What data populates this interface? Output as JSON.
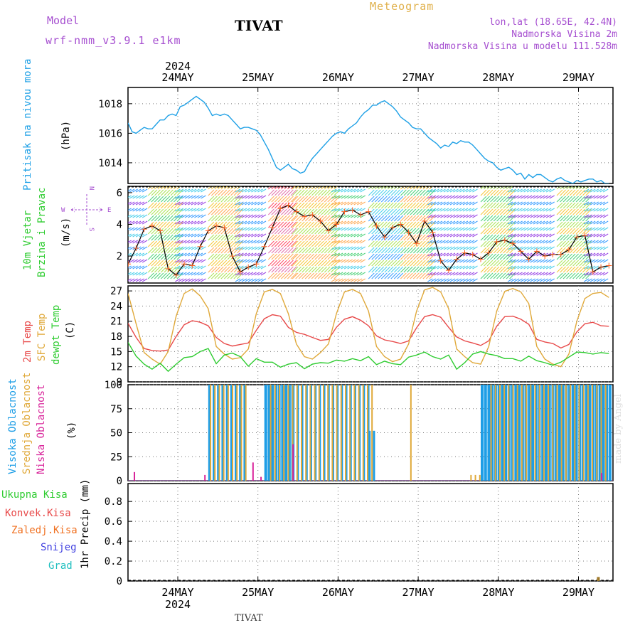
{
  "header": {
    "model_label": "Model",
    "model_run": "wrf-nmm_v3.9.1 e1km",
    "station": "TIVAT",
    "title": "Meteogram",
    "lonlat": "lon,lat (18.65E, 42.4N)",
    "elevation": "Nadmorska Visina 2m",
    "model_elevation": "Nadmorska Visina u modelu 111.528m"
  },
  "footer": {
    "station": "TIVAT",
    "watermark": "made by Angel"
  },
  "colors": {
    "pressure": "#1ea0e6",
    "temp2m": "#e84a4a",
    "sfc": "#e0a93a",
    "dew": "#2ecc30",
    "high": "#1e9ee6",
    "mid": "#e0a93a",
    "low": "#d8249a",
    "precip": "#a07a2a",
    "purple": "#a64fd0"
  },
  "chart_data": [
    {
      "type": "line",
      "panel": "pressure",
      "ylabel": "Pritisak na nivou mora",
      "unit": "(hPa)",
      "yticks": [
        1014,
        1016,
        1018
      ],
      "ylim": [
        1012.6,
        1019.1
      ],
      "x": [
        0,
        0.05,
        0.1,
        0.15,
        0.2,
        0.25,
        0.3,
        0.35,
        0.4,
        0.45,
        0.5,
        0.55,
        0.6,
        0.65,
        0.7,
        0.75,
        0.8,
        0.85,
        0.9,
        0.95,
        1.0,
        1.05,
        1.1,
        1.15,
        1.2,
        1.25,
        1.3,
        1.35,
        1.4,
        1.45,
        1.5,
        1.55,
        1.6,
        1.65,
        1.7,
        1.75,
        1.8,
        1.85,
        1.9,
        1.95,
        2.0,
        2.05,
        2.1,
        2.15,
        2.2,
        2.25,
        2.3,
        2.35,
        2.4,
        2.45,
        2.5,
        2.55,
        2.6,
        2.65,
        2.7,
        2.75,
        2.8,
        2.85,
        2.9,
        2.95,
        3.0,
        3.05,
        3.1,
        3.15,
        3.2,
        3.25,
        3.3,
        3.35,
        3.4,
        3.45,
        3.5,
        3.55,
        3.6,
        3.65,
        3.7,
        3.75,
        3.8,
        3.85,
        3.9,
        3.95,
        4.0,
        4.05,
        4.1,
        4.15,
        4.2,
        4.25,
        4.3,
        4.35,
        4.4,
        4.45,
        4.5,
        4.55,
        4.6,
        4.65,
        4.7,
        4.75,
        4.8,
        4.85,
        4.9,
        4.95,
        5.0,
        5.05,
        5.1,
        5.15,
        5.2,
        5.25,
        5.3,
        5.35,
        5.4,
        5.45,
        5.5,
        5.55,
        5.6,
        5.65,
        5.7,
        5.75,
        5.8,
        5.85,
        5.9,
        5.95,
        6.0
      ],
      "y": [
        1016.7,
        1016.1,
        1016.0,
        1016.2,
        1016.4,
        1016.3,
        1016.3,
        1016.6,
        1016.9,
        1016.9,
        1017.2,
        1017.3,
        1017.2,
        1017.8,
        1017.9,
        1018.1,
        1018.3,
        1018.5,
        1018.3,
        1018.1,
        1017.7,
        1017.2,
        1017.3,
        1017.2,
        1017.3,
        1017.2,
        1016.9,
        1016.6,
        1016.3,
        1016.4,
        1016.4,
        1016.3,
        1016.2,
        1015.9,
        1015.4,
        1014.9,
        1014.3,
        1013.7,
        1013.5,
        1013.7,
        1013.9,
        1013.6,
        1013.5,
        1013.3,
        1013.4,
        1013.9,
        1014.3,
        1014.6,
        1014.9,
        1015.2,
        1015.5,
        1015.8,
        1016.0,
        1016.1,
        1016.0,
        1016.3,
        1016.5,
        1016.7,
        1017.1,
        1017.4,
        1017.6,
        1017.9,
        1017.9,
        1018.1,
        1018.2,
        1018.0,
        1017.8,
        1017.5,
        1017.1,
        1016.9,
        1016.7,
        1016.4,
        1016.3,
        1016.3,
        1016.0,
        1015.7,
        1015.5,
        1015.3,
        1015.0,
        1015.2,
        1015.1,
        1015.4,
        1015.3,
        1015.5,
        1015.4,
        1015.4,
        1015.2,
        1014.9,
        1014.6,
        1014.3,
        1014.1,
        1014.0,
        1013.7,
        1013.5,
        1013.6,
        1013.7,
        1013.5,
        1013.2,
        1013.3,
        1012.9,
        1013.2,
        1013.0,
        1013.2,
        1013.2,
        1013.0,
        1012.8,
        1012.7,
        1012.9,
        1013.0,
        1012.8,
        1012.7,
        1012.6,
        1012.8,
        1012.7,
        1012.8,
        1012.9,
        1012.9,
        1012.7,
        1012.8,
        1012.6,
        1012.6
      ]
    },
    {
      "type": "line",
      "panel": "wind",
      "ylabel": "10m Vjetar",
      "ylabel2": "Brzina i Pravac",
      "unit": "(m/s)",
      "legend": {
        "n": "N",
        "w": "W",
        "e": "E",
        "s": "S"
      },
      "yticks": [
        2,
        4,
        6
      ],
      "ylim": [
        0.3,
        6.4
      ],
      "x": [
        0,
        0.1,
        0.2,
        0.3,
        0.4,
        0.5,
        0.6,
        0.7,
        0.8,
        0.9,
        1.0,
        1.1,
        1.2,
        1.3,
        1.4,
        1.5,
        1.6,
        1.7,
        1.8,
        1.9,
        2.0,
        2.1,
        2.2,
        2.3,
        2.4,
        2.5,
        2.6,
        2.7,
        2.8,
        2.9,
        3.0,
        3.1,
        3.2,
        3.3,
        3.4,
        3.5,
        3.6,
        3.7,
        3.8,
        3.9,
        4.0,
        4.1,
        4.2,
        4.3,
        4.4,
        4.5,
        4.6,
        4.7,
        4.8,
        4.9,
        5.0,
        5.1,
        5.2,
        5.3,
        5.4,
        5.5,
        5.6,
        5.7,
        5.8,
        5.9,
        6.0
      ],
      "y": [
        1.5,
        2.5,
        3.7,
        3.9,
        3.6,
        1.2,
        0.8,
        1.5,
        1.4,
        2.6,
        3.6,
        3.9,
        3.8,
        2.0,
        1.0,
        1.3,
        1.5,
        2.6,
        3.8,
        5.0,
        5.2,
        4.8,
        4.5,
        4.6,
        4.2,
        3.6,
        4.0,
        4.8,
        4.9,
        4.6,
        4.8,
        3.9,
        3.2,
        3.8,
        4.0,
        3.5,
        2.8,
        4.2,
        3.5,
        1.7,
        1.1,
        1.8,
        2.2,
        2.1,
        1.8,
        2.2,
        2.9,
        3.0,
        2.8,
        2.3,
        1.8,
        2.3,
        2.0,
        2.1,
        2.1,
        2.4,
        3.2,
        3.3,
        1.0,
        1.3,
        1.4
      ]
    },
    {
      "type": "line",
      "panel": "temperature",
      "ylabel_2m": "2m Temp",
      "ylabel_sfc": "SFC Temp",
      "ylabel_dew": "dewpt Temp",
      "unit": "(C)",
      "yticks": [
        9,
        12,
        15,
        18,
        21,
        24,
        27
      ],
      "ylim": [
        9,
        28
      ],
      "x": [
        0,
        0.1,
        0.2,
        0.3,
        0.4,
        0.5,
        0.6,
        0.7,
        0.8,
        0.9,
        1.0,
        1.1,
        1.2,
        1.3,
        1.4,
        1.5,
        1.6,
        1.7,
        1.8,
        1.9,
        2.0,
        2.1,
        2.2,
        2.3,
        2.4,
        2.5,
        2.6,
        2.7,
        2.8,
        2.9,
        3.0,
        3.1,
        3.2,
        3.3,
        3.4,
        3.5,
        3.6,
        3.7,
        3.8,
        3.9,
        4.0,
        4.1,
        4.2,
        4.3,
        4.4,
        4.5,
        4.6,
        4.7,
        4.8,
        4.9,
        5.0,
        5.1,
        5.2,
        5.3,
        5.4,
        5.5,
        5.6,
        5.7,
        5.8,
        5.9,
        6.0
      ],
      "series": [
        {
          "key": "temp2m",
          "values": [
            20.6,
            17.8,
            15.6,
            15.2,
            15.1,
            15.3,
            18.0,
            20.3,
            21.1,
            20.8,
            20.1,
            17.8,
            16.6,
            16.1,
            16.4,
            16.7,
            19.2,
            21.5,
            22.3,
            22.0,
            19.8,
            18.8,
            18.4,
            17.8,
            17.2,
            17.4,
            19.8,
            21.4,
            21.9,
            21.2,
            20.1,
            18.1,
            17.3,
            17.0,
            16.6,
            17.1,
            19.7,
            21.9,
            22.3,
            21.8,
            19.8,
            17.9,
            17.1,
            16.7,
            16.2,
            17.1,
            20.0,
            21.9,
            22.0,
            21.4,
            20.4,
            17.4,
            16.9,
            16.6,
            15.7,
            16.4,
            18.9,
            20.5,
            20.8,
            20.1,
            20.0
          ]
        },
        {
          "key": "sfc",
          "values": [
            26.5,
            20.5,
            14.8,
            13.5,
            12.5,
            15.0,
            22.0,
            26.5,
            27.4,
            26.0,
            23.5,
            16.0,
            14.5,
            13.5,
            13.8,
            15.5,
            22.5,
            26.8,
            27.3,
            26.5,
            22.5,
            16.5,
            14.0,
            13.5,
            14.8,
            16.5,
            22.5,
            26.8,
            27.3,
            26.5,
            23.0,
            16.0,
            14.0,
            13.0,
            13.5,
            16.5,
            23.0,
            27.2,
            27.7,
            26.8,
            23.5,
            15.5,
            14.0,
            12.8,
            12.5,
            16.0,
            23.0,
            26.9,
            27.5,
            26.8,
            24.5,
            16.0,
            13.5,
            12.5,
            12.0,
            14.5,
            21.0,
            25.5,
            26.5,
            26.7,
            25.7
          ]
        },
        {
          "key": "dew",
          "values": [
            16.8,
            14.1,
            12.5,
            11.5,
            12.7,
            11.1,
            12.5,
            13.8,
            14.0,
            15.0,
            15.6,
            12.6,
            14.3,
            14.7,
            14.0,
            12.1,
            13.6,
            12.9,
            12.9,
            11.9,
            12.5,
            12.8,
            11.6,
            12.5,
            12.8,
            12.7,
            13.3,
            13.1,
            13.6,
            13.2,
            14.0,
            12.4,
            13.1,
            12.6,
            12.4,
            13.9,
            14.3,
            14.9,
            14.0,
            13.5,
            14.3,
            11.5,
            12.8,
            14.5,
            15.0,
            14.5,
            14.2,
            13.6,
            13.6,
            13.1,
            14.1,
            13.2,
            12.8,
            12.3,
            12.9,
            13.9,
            14.9,
            14.8,
            14.5,
            14.8,
            14.6
          ]
        }
      ]
    },
    {
      "type": "bar",
      "panel": "clouds",
      "ylabel_high": "Visoka Oblacnost",
      "ylabel_mid": "Srednja Oblacnost",
      "ylabel_low": "Niska Oblacnost",
      "unit": "(%)",
      "yticks": [
        0,
        25,
        50,
        75,
        100
      ],
      "ylim": [
        0,
        100
      ],
      "high_segments": [
        {
          "from": 0,
          "to": 1.0,
          "value": 0
        },
        {
          "from": 1.0,
          "to": 1.45,
          "value": 100,
          "dense": false
        },
        {
          "from": 1.45,
          "to": 1.7,
          "value": 0
        },
        {
          "from": 1.7,
          "to": 2.05,
          "value": 100,
          "dense": true
        },
        {
          "from": 2.05,
          "to": 3.0,
          "value": 100,
          "dense": false
        },
        {
          "from": 3.0,
          "to": 3.1,
          "value": 52,
          "dense": false
        },
        {
          "from": 3.1,
          "to": 4.25,
          "value": 0
        },
        {
          "from": 4.4,
          "to": 6.0,
          "value": 100,
          "dense": true
        }
      ],
      "mid_segments": [
        {
          "from": 1.0,
          "to": 1.5,
          "value": 100
        },
        {
          "from": 1.75,
          "to": 3.05,
          "value": 100
        },
        {
          "from": 3.5,
          "to": 3.55,
          "value": 100
        },
        {
          "from": 4.25,
          "to": 4.4,
          "value": 6
        },
        {
          "from": 4.5,
          "to": 6.0,
          "value": 100
        }
      ],
      "low_spikes": [
        {
          "x": 0.07,
          "value": 9
        },
        {
          "x": 0.95,
          "value": 6
        },
        {
          "x": 1.55,
          "value": 19
        },
        {
          "x": 1.65,
          "value": 4
        },
        {
          "x": 2.05,
          "value": 38
        },
        {
          "x": 5.9,
          "value": 8
        }
      ]
    },
    {
      "type": "bar",
      "panel": "precip",
      "unit": "1hr Precip (mm)",
      "yticks": [
        0,
        0.2,
        0.4,
        0.6,
        0.8
      ],
      "ylim": [
        0,
        0.98
      ],
      "legend": [
        "Ukupna Kisa",
        "Konvek.Kisa",
        "Zaledj.Kisa",
        "Snijeg",
        "Grad"
      ],
      "bars": [
        {
          "x": 5.85,
          "value": 0.04
        }
      ]
    },
    {
      "type": "axis",
      "year": "2024",
      "dates": [
        "24MAY",
        "25MAY",
        "26MAY",
        "27MAY",
        "28MAY",
        "29MAY"
      ]
    }
  ]
}
